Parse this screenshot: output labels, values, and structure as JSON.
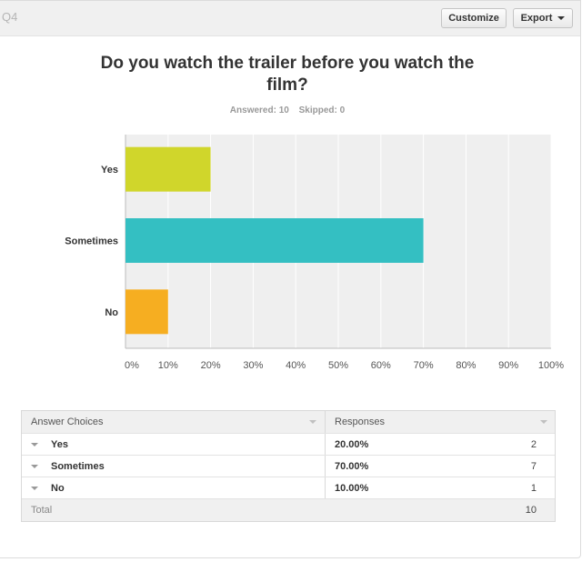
{
  "header": {
    "question_label": "Q4",
    "customize_label": "Customize",
    "export_label": "Export"
  },
  "question": {
    "title": "Do you watch the trailer before you watch the film?",
    "answered": "Answered: 10",
    "skipped": "Skipped: 0"
  },
  "colors": {
    "yes": "#d0d62b",
    "sometimes": "#34bfc2",
    "no": "#f6ae21",
    "plot_bg": "#efefef",
    "grid": "#ffffff"
  },
  "chart_data": {
    "type": "bar",
    "orientation": "horizontal",
    "categories": [
      "Yes",
      "Sometimes",
      "No"
    ],
    "values": [
      20,
      70,
      10
    ],
    "xlim": [
      0,
      100
    ],
    "xticks": [
      "0%",
      "10%",
      "20%",
      "30%",
      "40%",
      "50%",
      "60%",
      "70%",
      "80%",
      "90%",
      "100%"
    ],
    "grid": true
  },
  "table": {
    "headers": {
      "choices": "Answer Choices",
      "responses": "Responses"
    },
    "rows": [
      {
        "choice": "Yes",
        "percent": "20.00%",
        "count": "2"
      },
      {
        "choice": "Sometimes",
        "percent": "70.00%",
        "count": "7"
      },
      {
        "choice": "No",
        "percent": "10.00%",
        "count": "1"
      }
    ],
    "total_label": "Total",
    "total_value": "10"
  }
}
